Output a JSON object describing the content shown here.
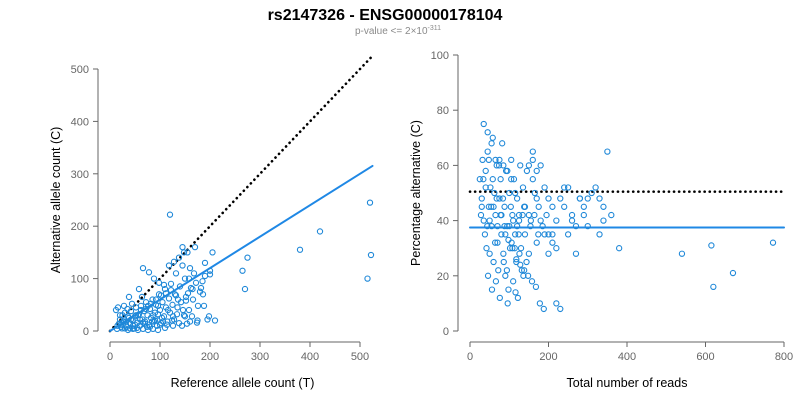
{
  "title": "rs2147326 - ENSG00000178104",
  "subtitle": {
    "prefix": "p-value <= 2×10",
    "exponent": "-311"
  },
  "colors": {
    "points": "#1f88d8",
    "fit": "#1f88e5",
    "reference": "#000000",
    "axis": "#666666"
  },
  "chart_data": [
    {
      "type": "scatter",
      "xlabel": "Reference allele count (T)",
      "ylabel": "Alternative allele count (C)",
      "xlim": [
        0,
        530
      ],
      "ylim": [
        0,
        500
      ],
      "xticks": [
        0,
        100,
        200,
        300,
        400,
        500
      ],
      "yticks": [
        0,
        100,
        200,
        300,
        400,
        500
      ],
      "grid": false,
      "lines": [
        {
          "name": "reference",
          "style": "dotted",
          "from": [
            0,
            0
          ],
          "to": [
            525,
            525
          ]
        },
        {
          "name": "fit",
          "style": "solid",
          "from": [
            0,
            0
          ],
          "to": [
            525,
            315
          ]
        }
      ],
      "points": [
        [
          15,
          10
        ],
        [
          18,
          14
        ],
        [
          20,
          22
        ],
        [
          22,
          8
        ],
        [
          25,
          30
        ],
        [
          28,
          18
        ],
        [
          30,
          35
        ],
        [
          32,
          12
        ],
        [
          35,
          42
        ],
        [
          38,
          25
        ],
        [
          40,
          15
        ],
        [
          42,
          38
        ],
        [
          45,
          20
        ],
        [
          48,
          5
        ],
        [
          50,
          28
        ],
        [
          52,
          45
        ],
        [
          55,
          16
        ],
        [
          58,
          32
        ],
        [
          60,
          10
        ],
        [
          62,
          48
        ],
        [
          65,
          22
        ],
        [
          68,
          38
        ],
        [
          70,
          14
        ],
        [
          72,
          55
        ],
        [
          75,
          30
        ],
        [
          78,
          12
        ],
        [
          80,
          42
        ],
        [
          82,
          25
        ],
        [
          85,
          60
        ],
        [
          88,
          18
        ],
        [
          90,
          35
        ],
        [
          92,
          50
        ],
        [
          95,
          20
        ],
        [
          98,
          70
        ],
        [
          100,
          40
        ],
        [
          102,
          15
        ],
        [
          105,
          55
        ],
        [
          108,
          28
        ],
        [
          110,
          80
        ],
        [
          112,
          45
        ],
        [
          115,
          18
        ],
        [
          118,
          62
        ],
        [
          120,
          35
        ],
        [
          122,
          90
        ],
        [
          125,
          50
        ],
        [
          128,
          22
        ],
        [
          130,
          70
        ],
        [
          132,
          110
        ],
        [
          135,
          45
        ],
        [
          138,
          15
        ],
        [
          140,
          85
        ],
        [
          142,
          55
        ],
        [
          145,
          125
        ],
        [
          148,
          30
        ],
        [
          150,
          100
        ],
        [
          152,
          65
        ],
        [
          155,
          150
        ],
        [
          158,
          40
        ],
        [
          160,
          120
        ],
        [
          165,
          80
        ],
        [
          170,
          160
        ],
        [
          175,
          20
        ],
        [
          180,
          75
        ],
        [
          185,
          95
        ],
        [
          190,
          130
        ],
        [
          195,
          22
        ],
        [
          200,
          115
        ],
        [
          205,
          150
        ],
        [
          210,
          20
        ],
        [
          12,
          40
        ],
        [
          16,
          45
        ],
        [
          24,
          5
        ],
        [
          28,
          48
        ],
        [
          34,
          8
        ],
        [
          44,
          52
        ],
        [
          54,
          6
        ],
        [
          64,
          65
        ],
        [
          74,
          8
        ],
        [
          84,
          18
        ],
        [
          94,
          10
        ],
        [
          104,
          25
        ],
        [
          114,
          12
        ],
        [
          124,
          20
        ],
        [
          134,
          32
        ],
        [
          144,
          10
        ],
        [
          154,
          14
        ],
        [
          164,
          28
        ],
        [
          174,
          16
        ],
        [
          38,
          65
        ],
        [
          58,
          80
        ],
        [
          66,
          120
        ],
        [
          78,
          112
        ],
        [
          88,
          100
        ],
        [
          98,
          92
        ],
        [
          108,
          88
        ],
        [
          118,
          125
        ],
        [
          128,
          132
        ],
        [
          138,
          140
        ],
        [
          148,
          150
        ],
        [
          158,
          100
        ],
        [
          120,
          222
        ],
        [
          145,
          160
        ],
        [
          168,
          110
        ],
        [
          188,
          48
        ],
        [
          198,
          28
        ],
        [
          265,
          115
        ],
        [
          270,
          80
        ],
        [
          275,
          140
        ],
        [
          380,
          155
        ],
        [
          420,
          190
        ],
        [
          515,
          100
        ],
        [
          520,
          245
        ],
        [
          522,
          145
        ],
        [
          30,
          5
        ],
        [
          36,
          28
        ],
        [
          46,
          10
        ],
        [
          56,
          30
        ],
        [
          76,
          48
        ],
        [
          86,
          30
        ],
        [
          96,
          32
        ],
        [
          106,
          18
        ],
        [
          116,
          40
        ],
        [
          126,
          28
        ],
        [
          136,
          60
        ],
        [
          146,
          40
        ],
        [
          156,
          72
        ],
        [
          166,
          60
        ],
        [
          176,
          48
        ],
        [
          186,
          70
        ],
        [
          20,
          30
        ],
        [
          26,
          18
        ],
        [
          40,
          5
        ],
        [
          50,
          12
        ],
        [
          60,
          22
        ],
        [
          70,
          18
        ],
        [
          80,
          8
        ],
        [
          90,
          20
        ],
        [
          100,
          12
        ],
        [
          110,
          6
        ],
        [
          150,
          28
        ],
        [
          160,
          18
        ],
        [
          200,
          108
        ],
        [
          190,
          105
        ],
        [
          182,
          82
        ],
        [
          172,
          92
        ],
        [
          162,
          82
        ],
        [
          152,
          58
        ],
        [
          132,
          68
        ],
        [
          122,
          78
        ],
        [
          112,
          72
        ],
        [
          102,
          68
        ],
        [
          92,
          60
        ],
        [
          82,
          52
        ],
        [
          72,
          42
        ],
        [
          62,
          40
        ],
        [
          52,
          30
        ],
        [
          42,
          22
        ],
        [
          32,
          18
        ],
        [
          22,
          12
        ],
        [
          14,
          4
        ],
        [
          36,
          2
        ],
        [
          46,
          4
        ],
        [
          56,
          2
        ],
        [
          66,
          4
        ],
        [
          76,
          2
        ],
        [
          86,
          4
        ],
        [
          96,
          2
        ],
        [
          66,
          16
        ],
        [
          96,
          48
        ],
        [
          126,
          10
        ]
      ]
    },
    {
      "type": "scatter",
      "xlabel": "Total number of reads",
      "ylabel": "Percentage alternative (C)",
      "xlim": [
        0,
        800
      ],
      "ylim": [
        0,
        100
      ],
      "xticks": [
        0,
        200,
        400,
        600,
        800
      ],
      "yticks": [
        0,
        20,
        40,
        60,
        80,
        100
      ],
      "grid": false,
      "lines": [
        {
          "name": "reference",
          "style": "dotted",
          "y": 50.5
        },
        {
          "name": "fit",
          "style": "solid",
          "y": 37.5
        }
      ],
      "points": [
        [
          25,
          55
        ],
        [
          30,
          48
        ],
        [
          32,
          62
        ],
        [
          35,
          40
        ],
        [
          38,
          35
        ],
        [
          40,
          58
        ],
        [
          42,
          30
        ],
        [
          45,
          65
        ],
        [
          48,
          45
        ],
        [
          50,
          28
        ],
        [
          52,
          52
        ],
        [
          55,
          38
        ],
        [
          58,
          70
        ],
        [
          60,
          25
        ],
        [
          62,
          50
        ],
        [
          65,
          42
        ],
        [
          68,
          60
        ],
        [
          70,
          32
        ],
        [
          72,
          22
        ],
        [
          75,
          48
        ],
        [
          78,
          55
        ],
        [
          80,
          35
        ],
        [
          82,
          68
        ],
        [
          85,
          28
        ],
        [
          88,
          45
        ],
        [
          90,
          20
        ],
        [
          92,
          58
        ],
        [
          95,
          38
        ],
        [
          98,
          15
        ],
        [
          100,
          50
        ],
        [
          102,
          30
        ],
        [
          105,
          62
        ],
        [
          108,
          42
        ],
        [
          110,
          18
        ],
        [
          112,
          55
        ],
        [
          115,
          35
        ],
        [
          118,
          25
        ],
        [
          120,
          48
        ],
        [
          122,
          12
        ],
        [
          125,
          40
        ],
        [
          128,
          60
        ],
        [
          130,
          30
        ],
        [
          132,
          22
        ],
        [
          135,
          52
        ],
        [
          138,
          45
        ],
        [
          140,
          35
        ],
        [
          145,
          58
        ],
        [
          150,
          28
        ],
        [
          155,
          40
        ],
        [
          160,
          65
        ],
        [
          165,
          50
        ],
        [
          170,
          32
        ],
        [
          175,
          45
        ],
        [
          180,
          60
        ],
        [
          185,
          38
        ],
        [
          190,
          52
        ],
        [
          195,
          42
        ],
        [
          200,
          35
        ],
        [
          210,
          45
        ],
        [
          220,
          40
        ],
        [
          230,
          48
        ],
        [
          240,
          52
        ],
        [
          250,
          35
        ],
        [
          260,
          42
        ],
        [
          270,
          28
        ],
        [
          280,
          48
        ],
        [
          290,
          45
        ],
        [
          300,
          38
        ],
        [
          320,
          52
        ],
        [
          330,
          48
        ],
        [
          340,
          40
        ],
        [
          350,
          65
        ],
        [
          360,
          42
        ],
        [
          380,
          30
        ],
        [
          28,
          42
        ],
        [
          34,
          55
        ],
        [
          44,
          38
        ],
        [
          54,
          45
        ],
        [
          64,
          32
        ],
        [
          74,
          60
        ],
        [
          84,
          48
        ],
        [
          94,
          22
        ],
        [
          104,
          45
        ],
        [
          114,
          30
        ],
        [
          124,
          35
        ],
        [
          134,
          42
        ],
        [
          144,
          25
        ],
        [
          154,
          38
        ],
        [
          164,
          42
        ],
        [
          174,
          35
        ],
        [
          46,
          20
        ],
        [
          56,
          15
        ],
        [
          66,
          18
        ],
        [
          76,
          12
        ],
        [
          86,
          25
        ],
        [
          96,
          10
        ],
        [
          106,
          32
        ],
        [
          116,
          14
        ],
        [
          126,
          28
        ],
        [
          136,
          20
        ],
        [
          35,
          75
        ],
        [
          45,
          72
        ],
        [
          55,
          68
        ],
        [
          65,
          62
        ],
        [
          75,
          62
        ],
        [
          85,
          60
        ],
        [
          95,
          58
        ],
        [
          105,
          55
        ],
        [
          115,
          50
        ],
        [
          125,
          42
        ],
        [
          30,
          45
        ],
        [
          40,
          52
        ],
        [
          50,
          40
        ],
        [
          60,
          45
        ],
        [
          70,
          38
        ],
        [
          80,
          42
        ],
        [
          90,
          35
        ],
        [
          100,
          38
        ],
        [
          110,
          40
        ],
        [
          120,
          38
        ],
        [
          140,
          45
        ],
        [
          150,
          42
        ],
        [
          160,
          55
        ],
        [
          170,
          48
        ],
        [
          180,
          40
        ],
        [
          190,
          35
        ],
        [
          200,
          28
        ],
        [
          210,
          32
        ],
        [
          220,
          10
        ],
        [
          230,
          8
        ],
        [
          240,
          45
        ],
        [
          250,
          52
        ],
        [
          260,
          40
        ],
        [
          270,
          38
        ],
        [
          280,
          48
        ],
        [
          290,
          42
        ],
        [
          300,
          48
        ],
        [
          310,
          50
        ],
        [
          330,
          35
        ],
        [
          340,
          45
        ],
        [
          150,
          60
        ],
        [
          160,
          62
        ],
        [
          170,
          58
        ],
        [
          200,
          48
        ],
        [
          210,
          35
        ],
        [
          220,
          30
        ],
        [
          540,
          28
        ],
        [
          615,
          31
        ],
        [
          620,
          16
        ],
        [
          670,
          21
        ],
        [
          772,
          32
        ],
        [
          48,
          62
        ],
        [
          58,
          55
        ],
        [
          68,
          48
        ],
        [
          78,
          42
        ],
        [
          88,
          38
        ],
        [
          98,
          33
        ],
        [
          108,
          30
        ],
        [
          118,
          26
        ],
        [
          128,
          24
        ],
        [
          138,
          22
        ],
        [
          148,
          20
        ],
        [
          158,
          18
        ],
        [
          168,
          16
        ],
        [
          178,
          10
        ],
        [
          188,
          8
        ]
      ]
    }
  ]
}
